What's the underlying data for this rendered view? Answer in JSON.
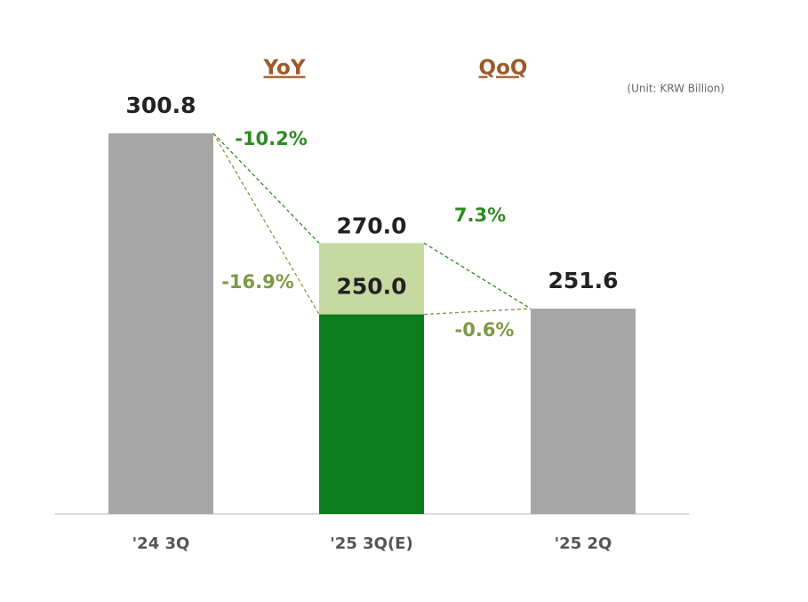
{
  "chart_data": {
    "type": "bar",
    "unit_note": "(Unit: KRW Billion)",
    "categories": [
      "'24 3Q",
      "'25 3Q(E)",
      "'25 2Q"
    ],
    "values": [
      300.8,
      250.0,
      251.6
    ],
    "value_labels": [
      "300.8",
      "250.0",
      "251.6"
    ],
    "colors": [
      "#a6a6a6",
      "#0b7d1c",
      "#a6a6a6"
    ],
    "upper_values": [
      null,
      270.0,
      null
    ],
    "upper_value_labels": [
      null,
      "270.0",
      null
    ],
    "upper_color": "#c5d9a1",
    "ylim": [
      194,
      312
    ],
    "yoy": {
      "title": "YoY",
      "values": [
        -10.2,
        -16.9
      ],
      "value_labels": [
        "-10.2%",
        "-16.9%"
      ],
      "colors": [
        "#2e8b22",
        "#7d9a44"
      ]
    },
    "qoq": {
      "title": "QoQ",
      "values": [
        7.3,
        -0.6
      ],
      "value_labels": [
        "7.3%",
        "-0.6%"
      ],
      "colors": [
        "#2e8b22",
        "#7d9a44"
      ]
    }
  }
}
